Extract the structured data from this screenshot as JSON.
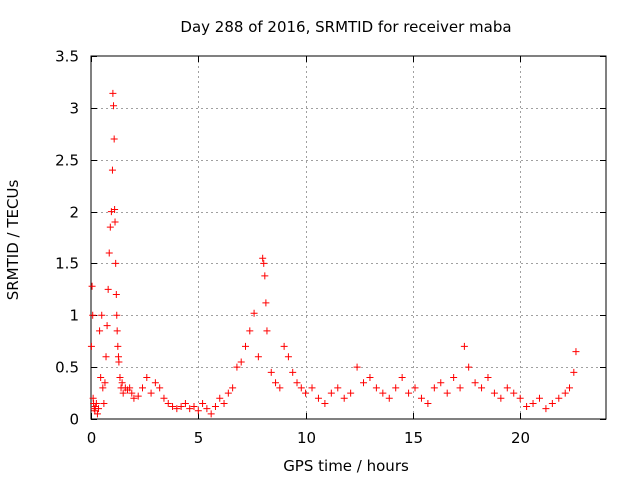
{
  "chart_data": {
    "type": "scatter",
    "title": "Day 288 of 2016, SRMTID for receiver maba",
    "xlabel": "GPS time / hours",
    "ylabel": "SRMTID / TECUs",
    "xlim": [
      0,
      24
    ],
    "ylim": [
      0,
      3.5
    ],
    "x_ticks": [
      0,
      5,
      10,
      15,
      20
    ],
    "y_ticks": [
      0,
      0.5,
      1,
      1.5,
      2,
      2.5,
      3,
      3.5
    ],
    "x_tick_labels": [
      "0",
      "5",
      "10",
      "15",
      "20"
    ],
    "y_tick_labels": [
      "0",
      "0.5",
      "1",
      "1.5",
      "2",
      "2.5",
      "3",
      "3.5"
    ],
    "grid": true,
    "marker": "plus",
    "series": [
      {
        "name": "SRMTID",
        "color": "#ff0000",
        "x": [
          0.02,
          0.05,
          0.08,
          0.1,
          0.12,
          0.15,
          0.18,
          0.2,
          0.25,
          0.3,
          0.35,
          0.4,
          0.45,
          0.5,
          0.55,
          0.6,
          0.65,
          0.7,
          0.75,
          0.8,
          0.85,
          0.9,
          0.95,
          1.0,
          1.02,
          1.05,
          1.08,
          1.1,
          1.12,
          1.15,
          1.18,
          1.2,
          1.22,
          1.25,
          1.28,
          1.3,
          1.35,
          1.4,
          1.45,
          1.5,
          1.6,
          1.7,
          1.8,
          1.9,
          2.0,
          2.2,
          2.4,
          2.6,
          2.8,
          3.0,
          3.2,
          3.4,
          3.6,
          3.8,
          4.0,
          4.2,
          4.4,
          4.6,
          4.8,
          5.0,
          5.2,
          5.4,
          5.6,
          5.8,
          6.0,
          6.2,
          6.4,
          6.6,
          6.8,
          7.0,
          7.2,
          7.4,
          7.6,
          7.8,
          8.0,
          8.05,
          8.1,
          8.15,
          8.2,
          8.4,
          8.6,
          8.8,
          9.0,
          9.2,
          9.4,
          9.6,
          9.8,
          10.0,
          10.3,
          10.6,
          10.9,
          11.2,
          11.5,
          11.8,
          12.1,
          12.4,
          12.7,
          13.0,
          13.3,
          13.6,
          13.9,
          14.2,
          14.5,
          14.8,
          15.1,
          15.4,
          15.7,
          16.0,
          16.3,
          16.6,
          16.9,
          17.2,
          17.4,
          17.6,
          17.9,
          18.2,
          18.5,
          18.8,
          19.1,
          19.4,
          19.7,
          20.0,
          20.3,
          20.6,
          20.9,
          21.2,
          21.5,
          21.8,
          22.1,
          22.3,
          22.5,
          22.6
        ],
        "y": [
          0.7,
          1.28,
          1.0,
          0.2,
          0.15,
          0.1,
          0.08,
          0.12,
          0.15,
          0.05,
          0.1,
          0.85,
          0.4,
          1.0,
          0.3,
          0.15,
          0.35,
          0.6,
          0.9,
          1.25,
          1.6,
          1.85,
          2.0,
          2.4,
          3.14,
          3.02,
          2.7,
          2.02,
          1.9,
          1.5,
          1.2,
          1.0,
          0.85,
          0.7,
          0.6,
          0.55,
          0.4,
          0.3,
          0.35,
          0.25,
          0.3,
          0.28,
          0.3,
          0.25,
          0.2,
          0.22,
          0.3,
          0.4,
          0.25,
          0.35,
          0.3,
          0.2,
          0.15,
          0.12,
          0.1,
          0.12,
          0.15,
          0.1,
          0.12,
          0.08,
          0.15,
          0.1,
          0.05,
          0.12,
          0.2,
          0.15,
          0.25,
          0.3,
          0.5,
          0.55,
          0.7,
          0.85,
          1.02,
          0.6,
          1.55,
          1.5,
          1.38,
          1.12,
          0.85,
          0.45,
          0.35,
          0.3,
          0.7,
          0.6,
          0.45,
          0.35,
          0.3,
          0.25,
          0.3,
          0.2,
          0.15,
          0.25,
          0.3,
          0.2,
          0.25,
          0.5,
          0.35,
          0.4,
          0.3,
          0.25,
          0.2,
          0.3,
          0.4,
          0.25,
          0.3,
          0.2,
          0.15,
          0.3,
          0.35,
          0.25,
          0.4,
          0.3,
          0.7,
          0.5,
          0.35,
          0.3,
          0.4,
          0.25,
          0.2,
          0.3,
          0.25,
          0.2,
          0.12,
          0.15,
          0.2,
          0.1,
          0.15,
          0.2,
          0.25,
          0.3,
          0.45,
          0.65
        ]
      }
    ]
  }
}
